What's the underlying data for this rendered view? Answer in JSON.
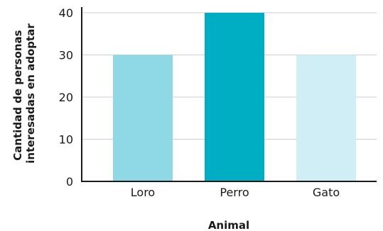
{
  "chart_data": {
    "type": "bar",
    "categories": [
      "Loro",
      "Perro",
      "Gato"
    ],
    "values": [
      30,
      40,
      30
    ],
    "colors": [
      "#8fd9e6",
      "#00aec3",
      "#d0eef6"
    ],
    "title": "",
    "xlabel": "Animal",
    "ylabel_lines": [
      "Cantidad de personas",
      "interesadas en adoptar"
    ],
    "ylim": [
      0,
      40
    ],
    "yticks": [
      0,
      10,
      20,
      30,
      40
    ],
    "grid": true,
    "legend": "none"
  }
}
